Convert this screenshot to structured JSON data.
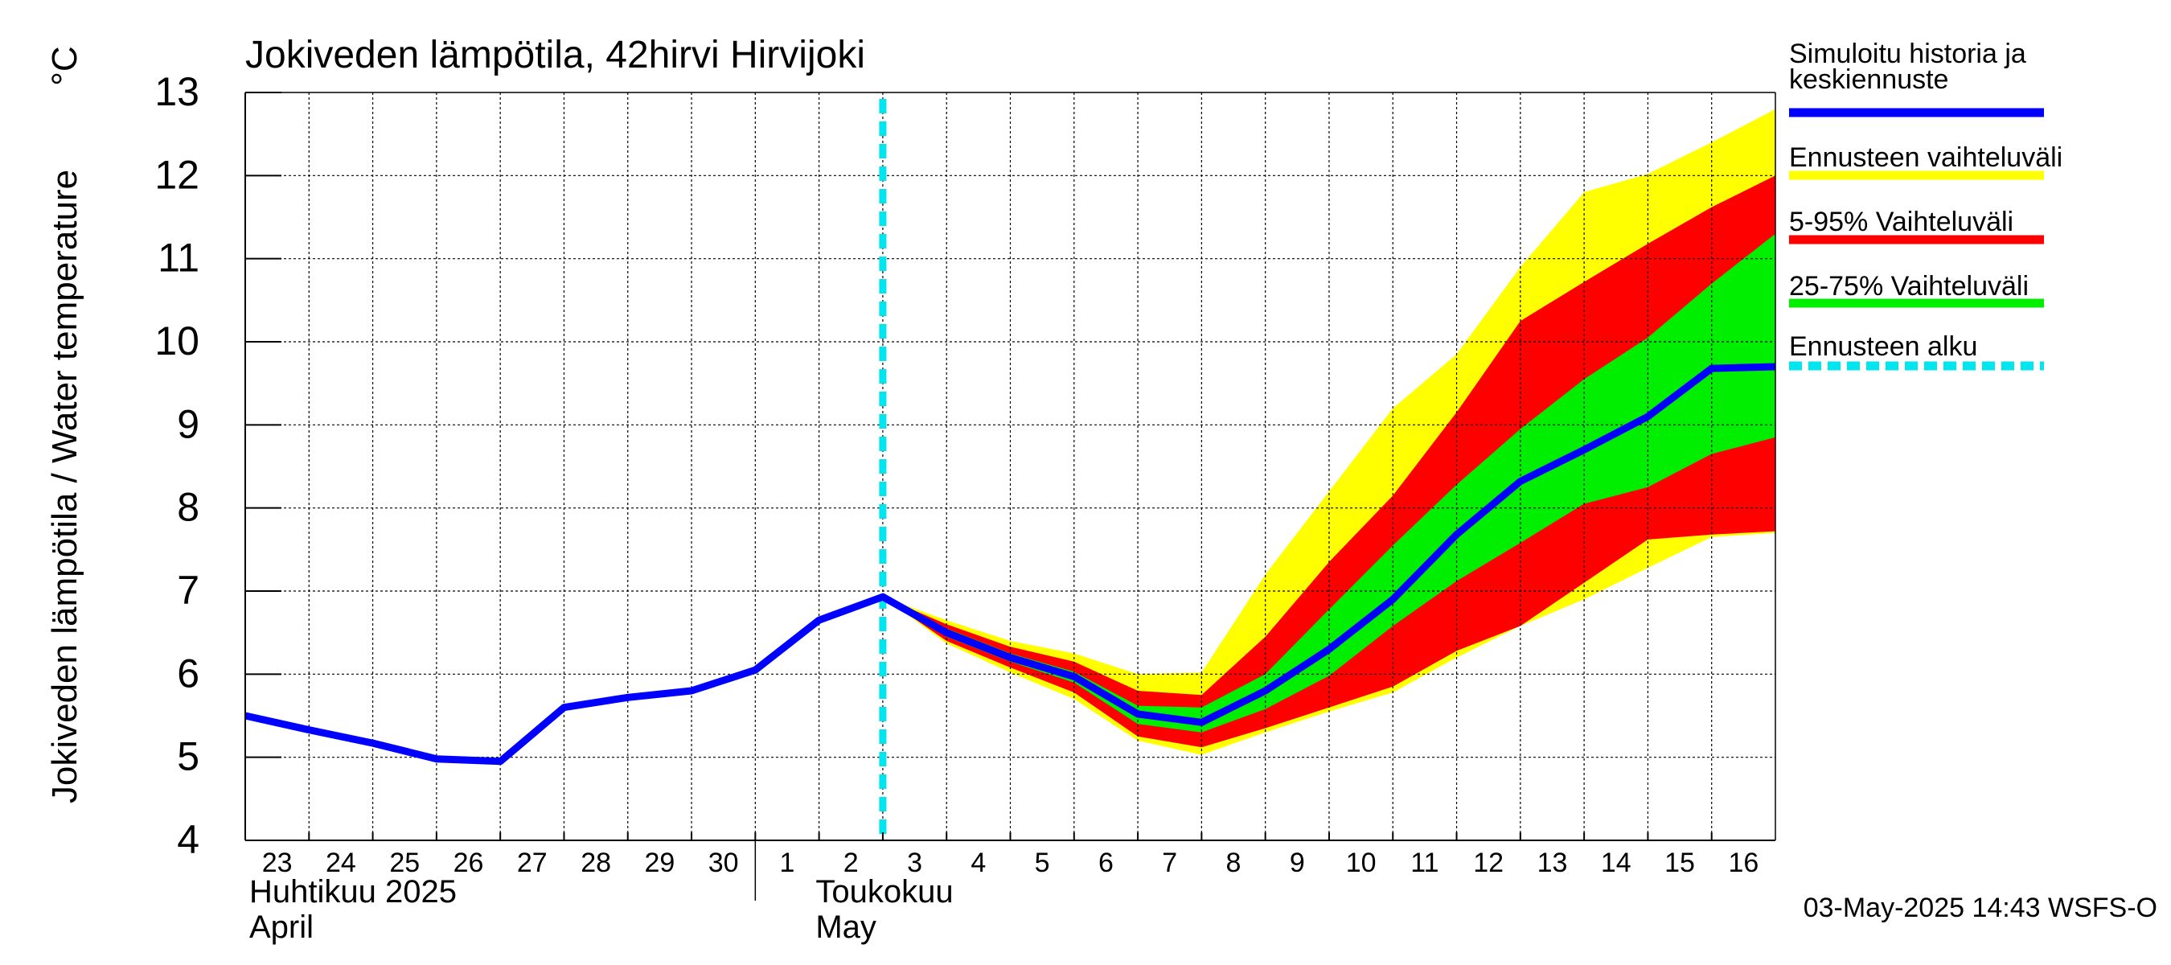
{
  "chart_data": {
    "type": "area",
    "title": "Jokiveden lämpötila, 42hirvi Hirvijoki",
    "ylabel": "Jokiveden lämpötila / Water temperature",
    "yunit": "°C",
    "ylim": [
      4,
      13
    ],
    "yticks": [
      4,
      5,
      6,
      7,
      8,
      9,
      10,
      11,
      12,
      13
    ],
    "xlim": [
      0,
      24
    ],
    "grid": true,
    "x_tick_labels": [
      "23",
      "24",
      "25",
      "26",
      "27",
      "28",
      "29",
      "30",
      "1",
      "2",
      "3",
      "4",
      "5",
      "6",
      "7",
      "8",
      "9",
      "10",
      "11",
      "12",
      "13",
      "14",
      "15",
      "16"
    ],
    "month_labels": [
      {
        "fi": "Huhtikuu  2025",
        "en": "April"
      },
      {
        "fi": "Toukokuu",
        "en": "May"
      }
    ],
    "month_divider_x": 8,
    "forecast_start_x": 10,
    "history": {
      "name": "Simuloitu historia ja keskiennuste",
      "x": [
        0,
        1,
        2,
        3,
        4,
        5,
        6,
        7,
        8,
        9,
        10
      ],
      "y": [
        5.5,
        5.33,
        5.17,
        4.98,
        4.95,
        5.6,
        5.72,
        5.8,
        6.05,
        6.65,
        6.93
      ]
    },
    "forecast_x": [
      10,
      11,
      12,
      13,
      14,
      15,
      16,
      17,
      18,
      19,
      20,
      21,
      22,
      23,
      24
    ],
    "mean": [
      6.93,
      6.5,
      6.2,
      5.97,
      5.52,
      5.42,
      5.8,
      6.3,
      6.9,
      7.68,
      8.32,
      8.7,
      9.1,
      9.68,
      9.7
    ],
    "range_max": [
      6.93,
      6.65,
      6.4,
      6.25,
      6.0,
      6.02,
      7.2,
      8.2,
      9.2,
      9.85,
      10.9,
      11.8,
      12.02,
      12.4,
      12.8
    ],
    "range_min": [
      6.93,
      6.37,
      6.02,
      5.7,
      5.2,
      5.03,
      5.3,
      5.55,
      5.78,
      6.2,
      6.58,
      6.9,
      7.28,
      7.65,
      7.7
    ],
    "p95": [
      6.93,
      6.6,
      6.33,
      6.15,
      5.8,
      5.75,
      6.45,
      7.35,
      8.15,
      9.15,
      10.25,
      10.72,
      11.18,
      11.62,
      12.0
    ],
    "p5": [
      6.93,
      6.4,
      6.08,
      5.78,
      5.25,
      5.12,
      5.35,
      5.6,
      5.85,
      6.28,
      6.58,
      7.1,
      7.62,
      7.68,
      7.72
    ],
    "p75": [
      6.93,
      6.55,
      6.25,
      6.03,
      5.62,
      5.6,
      6.0,
      6.78,
      7.55,
      8.28,
      8.95,
      9.55,
      10.05,
      10.7,
      11.3
    ],
    "p25": [
      6.93,
      6.45,
      6.15,
      5.9,
      5.4,
      5.3,
      5.58,
      5.98,
      6.58,
      7.12,
      7.58,
      8.05,
      8.25,
      8.65,
      8.85
    ],
    "legend": [
      {
        "label": "Simuloitu historia ja",
        "label2": "keskiennuste",
        "color": "#0000ff",
        "style": "solid"
      },
      {
        "label": "Ennusteen vaihteluväli",
        "color": "#ffff00",
        "style": "solid"
      },
      {
        "label": "5-95% Vaihteluväli",
        "color": "#ff0000",
        "style": "solid"
      },
      {
        "label": "25-75% Vaihteluväli",
        "color": "#00ee00",
        "style": "solid"
      },
      {
        "label": "Ennusteen alku",
        "color": "#00e5ee",
        "style": "dashed"
      }
    ],
    "colors": {
      "mean": "#0000ff",
      "range": "#ffff00",
      "p5_95": "#ff0000",
      "p25_75": "#00ee00",
      "forecast_start": "#00e5ee"
    },
    "timestamp": "03-May-2025 14:43 WSFS-O"
  }
}
